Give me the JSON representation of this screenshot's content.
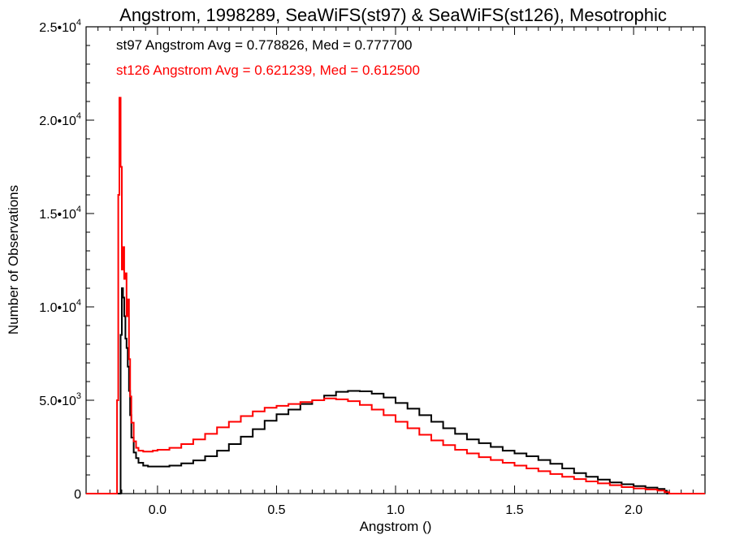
{
  "chart_data": {
    "type": "line",
    "title": "Angstrom, 1998289, SeaWiFS(st97) & SeaWiFS(st126), Mesotrophic",
    "xlabel": "Angstrom ()",
    "ylabel": "Number of Observations",
    "xlim": [
      -0.3,
      2.3
    ],
    "ylim": [
      0,
      25000
    ],
    "x_ticks": [
      {
        "value": 0.0,
        "label": "0.0"
      },
      {
        "value": 0.5,
        "label": "0.5"
      },
      {
        "value": 1.0,
        "label": "1.0"
      },
      {
        "value": 1.5,
        "label": "1.5"
      },
      {
        "value": 2.0,
        "label": "2.0"
      }
    ],
    "y_ticks": [
      {
        "value": 0,
        "mant": "0",
        "exp": ""
      },
      {
        "value": 5000,
        "mant": "5.0•10",
        "exp": "3"
      },
      {
        "value": 10000,
        "mant": "1.0•10",
        "exp": "4"
      },
      {
        "value": 15000,
        "mant": "1.5•10",
        "exp": "4"
      },
      {
        "value": 20000,
        "mant": "2.0•10",
        "exp": "4"
      },
      {
        "value": 25000,
        "mant": "2.5•10",
        "exp": "4"
      }
    ],
    "grid": false,
    "annotations": [
      {
        "text": "st97 Angstrom Avg = 0.778826, Med = 0.777700",
        "color": "#000000"
      },
      {
        "text": "st126 Angstrom Avg = 0.621239, Med = 0.612500",
        "color": "#ff0000"
      }
    ],
    "series": [
      {
        "color": "#000000",
        "points": [
          [
            -0.3,
            0
          ],
          [
            -0.17,
            0
          ],
          [
            -0.16,
            0
          ],
          [
            -0.155,
            8500
          ],
          [
            -0.15,
            11000
          ],
          [
            -0.145,
            10500
          ],
          [
            -0.14,
            9500
          ],
          [
            -0.135,
            8300
          ],
          [
            -0.13,
            7800
          ],
          [
            -0.125,
            6800
          ],
          [
            -0.12,
            5500
          ],
          [
            -0.115,
            4200
          ],
          [
            -0.11,
            3000
          ],
          [
            -0.1,
            2200
          ],
          [
            -0.09,
            1900
          ],
          [
            -0.08,
            1650
          ],
          [
            -0.06,
            1500
          ],
          [
            -0.04,
            1450
          ],
          [
            -0.02,
            1450
          ],
          [
            0.0,
            1450
          ],
          [
            0.05,
            1500
          ],
          [
            0.1,
            1620
          ],
          [
            0.15,
            1780
          ],
          [
            0.2,
            2000
          ],
          [
            0.25,
            2300
          ],
          [
            0.3,
            2650
          ],
          [
            0.35,
            3050
          ],
          [
            0.4,
            3450
          ],
          [
            0.45,
            3900
          ],
          [
            0.5,
            4250
          ],
          [
            0.55,
            4500
          ],
          [
            0.6,
            4800
          ],
          [
            0.65,
            5000
          ],
          [
            0.7,
            5250
          ],
          [
            0.75,
            5450
          ],
          [
            0.8,
            5500
          ],
          [
            0.85,
            5480
          ],
          [
            0.9,
            5350
          ],
          [
            0.95,
            5150
          ],
          [
            1.0,
            4850
          ],
          [
            1.05,
            4550
          ],
          [
            1.1,
            4200
          ],
          [
            1.15,
            3850
          ],
          [
            1.2,
            3500
          ],
          [
            1.25,
            3200
          ],
          [
            1.3,
            2900
          ],
          [
            1.35,
            2700
          ],
          [
            1.4,
            2500
          ],
          [
            1.45,
            2300
          ],
          [
            1.5,
            2150
          ],
          [
            1.55,
            2000
          ],
          [
            1.6,
            1800
          ],
          [
            1.65,
            1600
          ],
          [
            1.7,
            1350
          ],
          [
            1.75,
            1100
          ],
          [
            1.8,
            900
          ],
          [
            1.85,
            750
          ],
          [
            1.9,
            600
          ],
          [
            1.95,
            500
          ],
          [
            2.0,
            400
          ],
          [
            2.05,
            320
          ],
          [
            2.1,
            250
          ],
          [
            2.13,
            150
          ],
          [
            2.14,
            0
          ],
          [
            2.3,
            0
          ]
        ]
      },
      {
        "color": "#ff0000",
        "points": [
          [
            -0.3,
            0
          ],
          [
            -0.18,
            0
          ],
          [
            -0.175,
            0
          ],
          [
            -0.17,
            5000
          ],
          [
            -0.165,
            16000
          ],
          [
            -0.16,
            21200
          ],
          [
            -0.155,
            17500
          ],
          [
            -0.15,
            12000
          ],
          [
            -0.145,
            13200
          ],
          [
            -0.14,
            11500
          ],
          [
            -0.135,
            11800
          ],
          [
            -0.13,
            9500
          ],
          [
            -0.125,
            10400
          ],
          [
            -0.12,
            7200
          ],
          [
            -0.115,
            5200
          ],
          [
            -0.11,
            3800
          ],
          [
            -0.1,
            2800
          ],
          [
            -0.09,
            2450
          ],
          [
            -0.08,
            2300
          ],
          [
            -0.06,
            2250
          ],
          [
            -0.04,
            2250
          ],
          [
            -0.02,
            2300
          ],
          [
            0.0,
            2350
          ],
          [
            0.05,
            2450
          ],
          [
            0.1,
            2650
          ],
          [
            0.15,
            2900
          ],
          [
            0.2,
            3200
          ],
          [
            0.25,
            3550
          ],
          [
            0.3,
            3850
          ],
          [
            0.35,
            4150
          ],
          [
            0.4,
            4400
          ],
          [
            0.45,
            4600
          ],
          [
            0.5,
            4700
          ],
          [
            0.55,
            4800
          ],
          [
            0.6,
            4900
          ],
          [
            0.65,
            5000
          ],
          [
            0.7,
            5100
          ],
          [
            0.75,
            5050
          ],
          [
            0.8,
            4950
          ],
          [
            0.85,
            4750
          ],
          [
            0.9,
            4500
          ],
          [
            0.95,
            4200
          ],
          [
            1.0,
            3850
          ],
          [
            1.05,
            3500
          ],
          [
            1.1,
            3150
          ],
          [
            1.15,
            2850
          ],
          [
            1.2,
            2600
          ],
          [
            1.25,
            2350
          ],
          [
            1.3,
            2150
          ],
          [
            1.35,
            1950
          ],
          [
            1.4,
            1800
          ],
          [
            1.45,
            1650
          ],
          [
            1.5,
            1500
          ],
          [
            1.55,
            1350
          ],
          [
            1.6,
            1200
          ],
          [
            1.65,
            1050
          ],
          [
            1.7,
            900
          ],
          [
            1.75,
            780
          ],
          [
            1.8,
            650
          ],
          [
            1.85,
            550
          ],
          [
            1.9,
            450
          ],
          [
            1.95,
            350
          ],
          [
            2.0,
            280
          ],
          [
            2.05,
            220
          ],
          [
            2.1,
            160
          ],
          [
            2.13,
            80
          ],
          [
            2.15,
            0
          ],
          [
            2.3,
            0
          ]
        ]
      }
    ]
  }
}
